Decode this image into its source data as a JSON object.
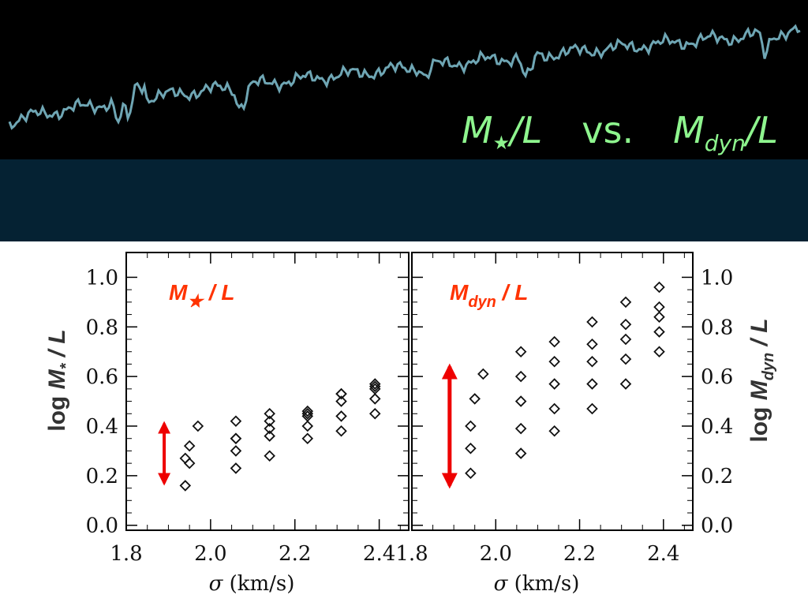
{
  "slide": {
    "title_left_main": "M",
    "title_left_star": "★",
    "title_left_rest": "/L",
    "title_vs": "vs.",
    "title_right_main": "M",
    "title_right_sub": "dyn",
    "title_right_rest": "/L",
    "title_color": "#8ef58e",
    "header_color": "#000000",
    "band_color": "#052233",
    "spectrum_color": "#6fa6b4"
  },
  "chart_data": [
    {
      "type": "scatter",
      "panel_label": "M★ / L",
      "label_main": "M",
      "label_sub": "★",
      "label_rest": " / L",
      "xlabel_symbol": "σ",
      "xlabel_units": "(km/s)",
      "ylabel_prefix": "log ",
      "ylabel_main": "M",
      "ylabel_sub": "*",
      "ylabel_rest": " / L",
      "xlim": [
        1.8,
        2.47
      ],
      "ylim": [
        -0.02,
        1.1
      ],
      "xticks": [
        "1.8",
        "2.0",
        "2.2",
        "2.4"
      ],
      "yticks": [
        "0.0",
        "0.2",
        "0.4",
        "0.6",
        "0.8",
        "1.0"
      ],
      "marker": "diamond-open",
      "points": [
        [
          1.94,
          0.16
        ],
        [
          1.94,
          0.27
        ],
        [
          1.95,
          0.25
        ],
        [
          1.95,
          0.32
        ],
        [
          1.97,
          0.4
        ],
        [
          2.06,
          0.23
        ],
        [
          2.06,
          0.3
        ],
        [
          2.06,
          0.35
        ],
        [
          2.06,
          0.42
        ],
        [
          2.06,
          0.35
        ],
        [
          2.14,
          0.28
        ],
        [
          2.14,
          0.36
        ],
        [
          2.14,
          0.39
        ],
        [
          2.14,
          0.42
        ],
        [
          2.14,
          0.45
        ],
        [
          2.23,
          0.35
        ],
        [
          2.23,
          0.4
        ],
        [
          2.23,
          0.44
        ],
        [
          2.23,
          0.45
        ],
        [
          2.23,
          0.46
        ],
        [
          2.31,
          0.38
        ],
        [
          2.31,
          0.44
        ],
        [
          2.31,
          0.5
        ],
        [
          2.31,
          0.53
        ],
        [
          2.31,
          0.53
        ],
        [
          2.39,
          0.45
        ],
        [
          2.39,
          0.51
        ],
        [
          2.39,
          0.55
        ],
        [
          2.39,
          0.56
        ],
        [
          2.39,
          0.57
        ]
      ],
      "range_arrow": {
        "x": 1.89,
        "y_from": 0.17,
        "y_to": 0.41,
        "color": "#ee0000"
      }
    },
    {
      "type": "scatter",
      "panel_label": "Mdyn / L",
      "label_main": "M",
      "label_sub": "dyn",
      "label_rest": " / L",
      "xlabel_symbol": "σ",
      "xlabel_units": "(km/s)",
      "ylabel_prefix": "log ",
      "ylabel_main": "M",
      "ylabel_sub": "dyn",
      "ylabel_rest": " / L",
      "xlim": [
        1.8,
        2.47
      ],
      "ylim": [
        -0.02,
        1.1
      ],
      "xticks": [
        "1.8",
        "2.0",
        "2.2",
        "2.4"
      ],
      "yticks": [
        "0.0",
        "0.2",
        "0.4",
        "0.6",
        "0.8",
        "1.0"
      ],
      "marker": "diamond-open",
      "points": [
        [
          1.94,
          0.21
        ],
        [
          1.94,
          0.31
        ],
        [
          1.94,
          0.4
        ],
        [
          1.95,
          0.51
        ],
        [
          1.97,
          0.61
        ],
        [
          2.06,
          0.29
        ],
        [
          2.06,
          0.39
        ],
        [
          2.06,
          0.5
        ],
        [
          2.06,
          0.6
        ],
        [
          2.06,
          0.7
        ],
        [
          2.14,
          0.38
        ],
        [
          2.14,
          0.47
        ],
        [
          2.14,
          0.57
        ],
        [
          2.14,
          0.66
        ],
        [
          2.14,
          0.74
        ],
        [
          2.23,
          0.47
        ],
        [
          2.23,
          0.57
        ],
        [
          2.23,
          0.66
        ],
        [
          2.23,
          0.73
        ],
        [
          2.23,
          0.82
        ],
        [
          2.31,
          0.57
        ],
        [
          2.31,
          0.67
        ],
        [
          2.31,
          0.75
        ],
        [
          2.31,
          0.81
        ],
        [
          2.31,
          0.9
        ],
        [
          2.39,
          0.7
        ],
        [
          2.39,
          0.78
        ],
        [
          2.39,
          0.84
        ],
        [
          2.39,
          0.88
        ],
        [
          2.39,
          0.96
        ]
      ],
      "range_arrow": {
        "x": 1.89,
        "y_from": 0.16,
        "y_to": 0.64,
        "color": "#ee0000"
      }
    }
  ]
}
